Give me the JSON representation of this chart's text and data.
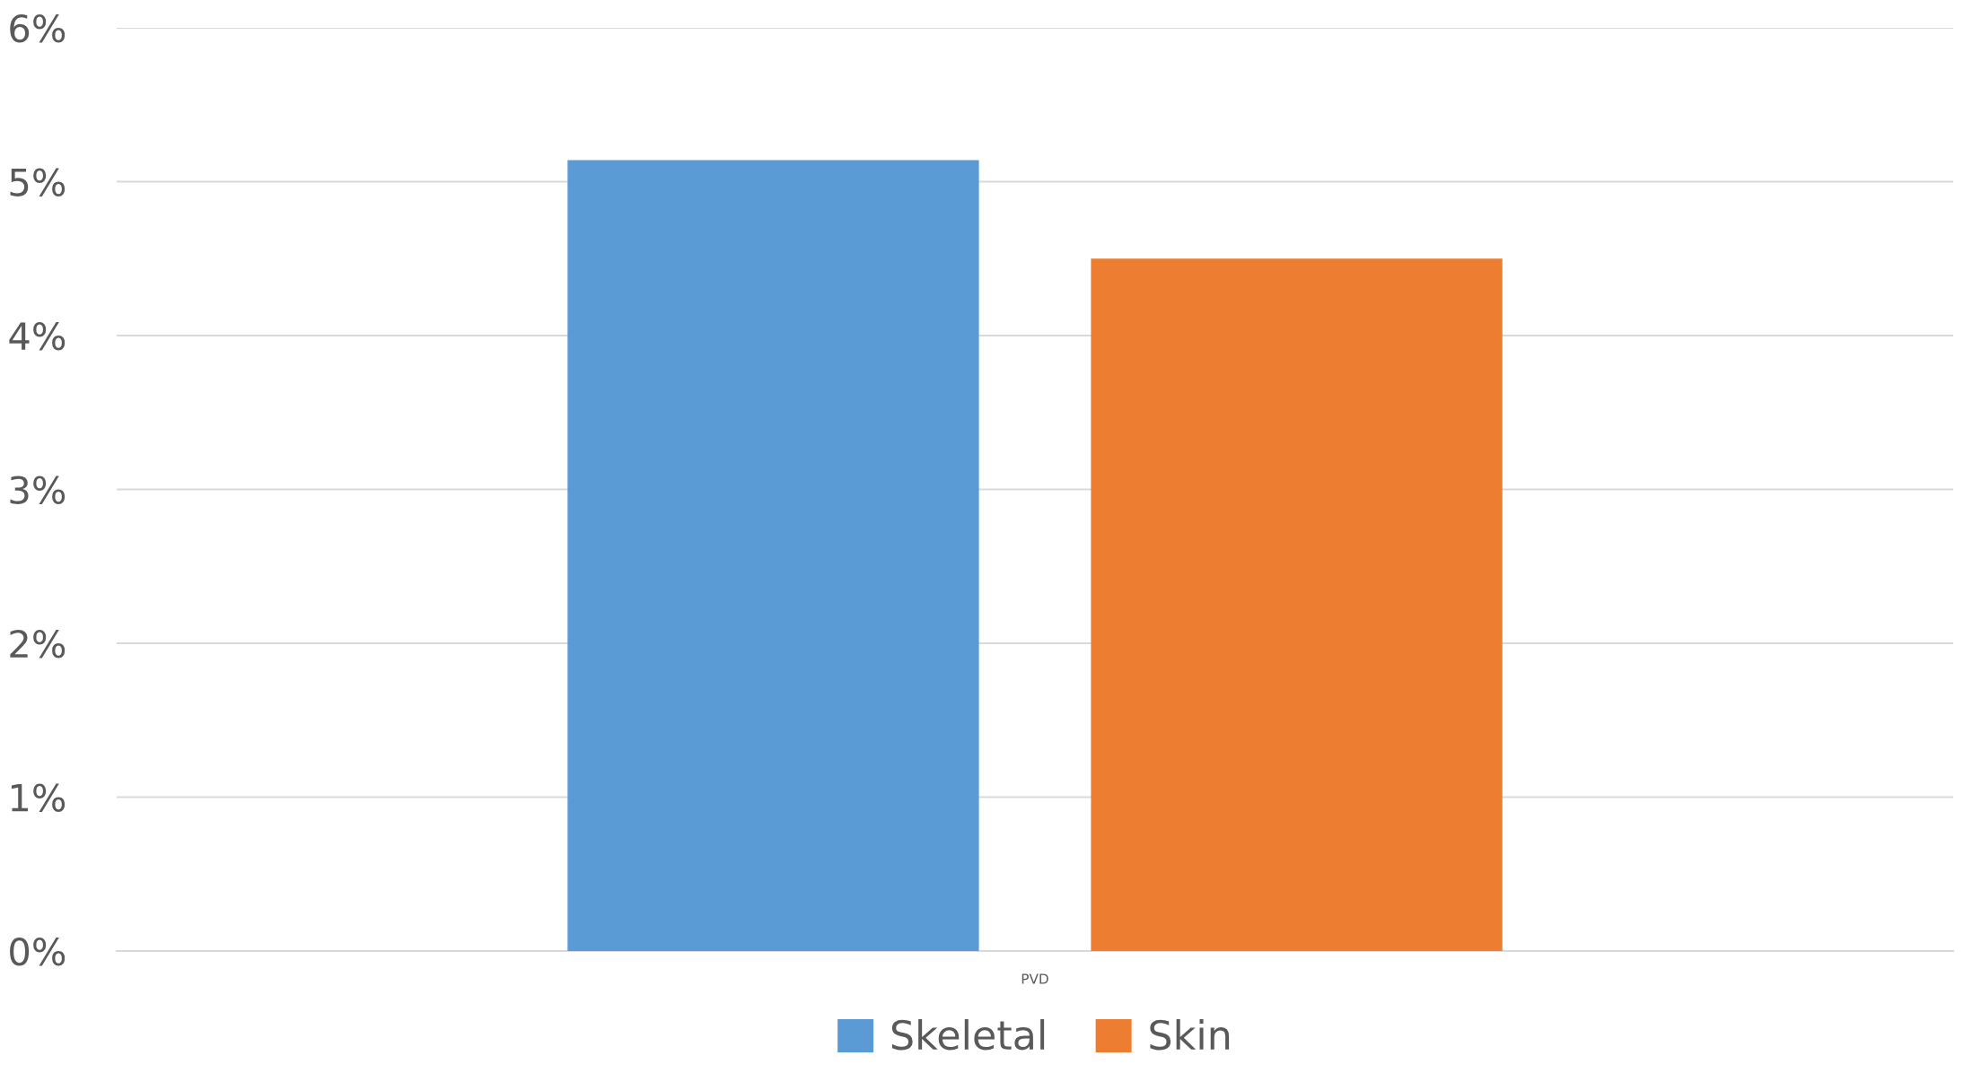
{
  "chart_data": {
    "type": "bar",
    "categories": [
      "PVD"
    ],
    "series": [
      {
        "name": "Skeletal",
        "color": "#5b9bd5",
        "values": [
          5.14
        ]
      },
      {
        "name": "Skin",
        "color": "#ed7d31",
        "values": [
          4.5
        ]
      }
    ],
    "ylim": [
      0,
      6
    ],
    "yticks": [
      {
        "value": 0,
        "label": "0%"
      },
      {
        "value": 1,
        "label": "1%"
      },
      {
        "value": 2,
        "label": "2%"
      },
      {
        "value": 3,
        "label": "3%"
      },
      {
        "value": 4,
        "label": "4%"
      },
      {
        "value": 5,
        "label": "5%"
      },
      {
        "value": 6,
        "label": "6%"
      }
    ],
    "grid": "y",
    "legend": "bottom"
  }
}
